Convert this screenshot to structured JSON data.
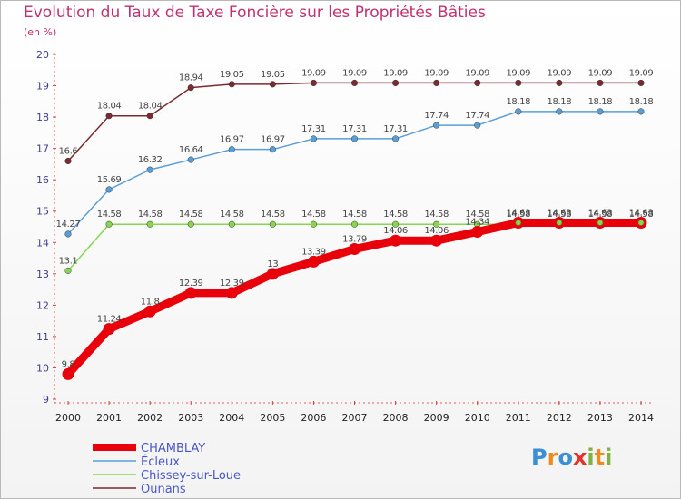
{
  "title": "Evolution du Taux de Taxe Foncière sur les Propriétés Bâties",
  "subtitle": "(en %)",
  "logo": [
    "P",
    "r",
    "o",
    "x",
    "i",
    "t",
    "i"
  ],
  "logo_colors": [
    "#3a8fd6",
    "#f08a1d",
    "#3a8fd6",
    "#e4322b",
    "#7cb342",
    "#f08a1d",
    "#7cb342"
  ],
  "chart_data": {
    "type": "line",
    "title": "Evolution du Taux de Taxe Foncière sur les Propriétés Bâties",
    "ylabel": "(en %)",
    "xlabel": "",
    "ylim": [
      9,
      20
    ],
    "yticks": [
      9,
      10,
      11,
      12,
      13,
      14,
      15,
      16,
      17,
      18,
      19,
      20
    ],
    "categories": [
      "2000",
      "2001",
      "2002",
      "2003",
      "2004",
      "2005",
      "2006",
      "2007",
      "2008",
      "2009",
      "2010",
      "2011",
      "2012",
      "2013",
      "2014"
    ],
    "series": [
      {
        "name": "Ounans",
        "color": "#7b2b30",
        "values": [
          16.6,
          18.04,
          18.04,
          18.94,
          19.05,
          19.05,
          19.09,
          19.09,
          19.09,
          19.09,
          19.09,
          19.09,
          19.09,
          19.09,
          19.09
        ],
        "labels": [
          "16.6",
          "18.04",
          "18.04",
          "18.94",
          "19.05",
          "19.05",
          "19.09",
          "19.09",
          "19.09",
          "19.09",
          "19.09",
          "19.09",
          "19.09",
          "19.09",
          "19.09"
        ]
      },
      {
        "name": "Écleux",
        "color": "#5a9ed6",
        "values": [
          14.27,
          15.69,
          16.32,
          16.64,
          16.97,
          16.97,
          17.31,
          17.31,
          17.31,
          17.74,
          17.74,
          18.18,
          18.18,
          18.18,
          18.18
        ],
        "labels": [
          "14.27",
          "15.69",
          "16.32",
          "16.64",
          "16.97",
          "16.97",
          "17.31",
          "17.31",
          "17.31",
          "17.74",
          "17.74",
          "18.18",
          "18.18",
          "18.18",
          "18.18"
        ]
      },
      {
        "name": "Chissey-sur-Loue",
        "color": "#86d650",
        "values": [
          13.1,
          14.58,
          14.58,
          14.58,
          14.58,
          14.58,
          14.58,
          14.58,
          14.58,
          14.58,
          14.58,
          14.58,
          14.58,
          14.58,
          14.58
        ],
        "labels": [
          "13.1",
          "14.58",
          "14.58",
          "14.58",
          "14.58",
          "14.58",
          "14.58",
          "14.58",
          "14.58",
          "14.58",
          "14.58",
          "14.58",
          "14.58",
          "14.58",
          "14.58"
        ]
      },
      {
        "name": "CHAMBLAY",
        "color": "#e8000b",
        "values": [
          9.8,
          11.24,
          11.8,
          12.39,
          12.39,
          13,
          13.39,
          13.79,
          14.06,
          14.06,
          14.34,
          14.63,
          14.63,
          14.63,
          14.63
        ],
        "labels": [
          "9.8",
          "11.24",
          "11.8",
          "12.39",
          "12.39",
          "13",
          "13.39",
          "13.79",
          "14.06",
          "14.06",
          "14.34",
          "14.63",
          "14.63",
          "14.63",
          "14.63"
        ]
      }
    ],
    "legend": [
      {
        "name": "CHAMBLAY",
        "color": "#e8000b",
        "text_color": "#4a57c8"
      },
      {
        "name": "Écleux",
        "color": "#5a9ed6",
        "text_color": "#4a57c8"
      },
      {
        "name": "Chissey-sur-Loue",
        "color": "#86d650",
        "text_color": "#4a57c8"
      },
      {
        "name": "Ounans",
        "color": "#7b2b30",
        "text_color": "#4a57c8"
      }
    ],
    "legend_position": "bottom-left",
    "grid": false
  }
}
